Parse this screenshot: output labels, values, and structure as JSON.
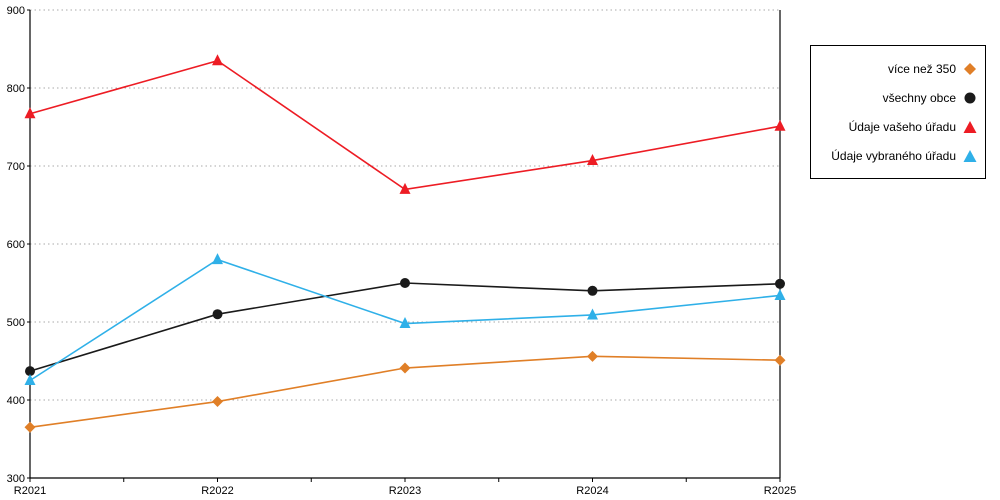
{
  "chart_data": {
    "type": "line",
    "title": "",
    "xlabel": "",
    "ylabel": "",
    "categories": [
      "R2021",
      "R2022",
      "R2023",
      "R2024",
      "R2025"
    ],
    "series": [
      {
        "name": "více než 350",
        "color": "#e07f27",
        "marker": "diamond",
        "values": [
          365,
          398,
          441,
          456,
          451
        ]
      },
      {
        "name": "všechny obce",
        "color": "#1a1a1a",
        "marker": "circle",
        "values": [
          437,
          510,
          550,
          540,
          549
        ]
      },
      {
        "name": "Údaje vašeho úřadu",
        "color": "#ed1c24",
        "marker": "triangle",
        "values": [
          767,
          835,
          670,
          707,
          751
        ]
      },
      {
        "name": "Údaje vybraného úřadu",
        "color": "#2fb0e8",
        "marker": "triangle",
        "values": [
          425,
          580,
          498,
          509,
          534
        ]
      }
    ],
    "ylim": [
      300,
      900
    ],
    "ytick_step": 100,
    "yticks": [
      "300",
      "400",
      "500",
      "600",
      "700",
      "800",
      "900"
    ],
    "grid": "horizontal-dotted",
    "gridline_color": "#aaaaaa",
    "axis_color": "#000000",
    "legend_position": "right"
  }
}
